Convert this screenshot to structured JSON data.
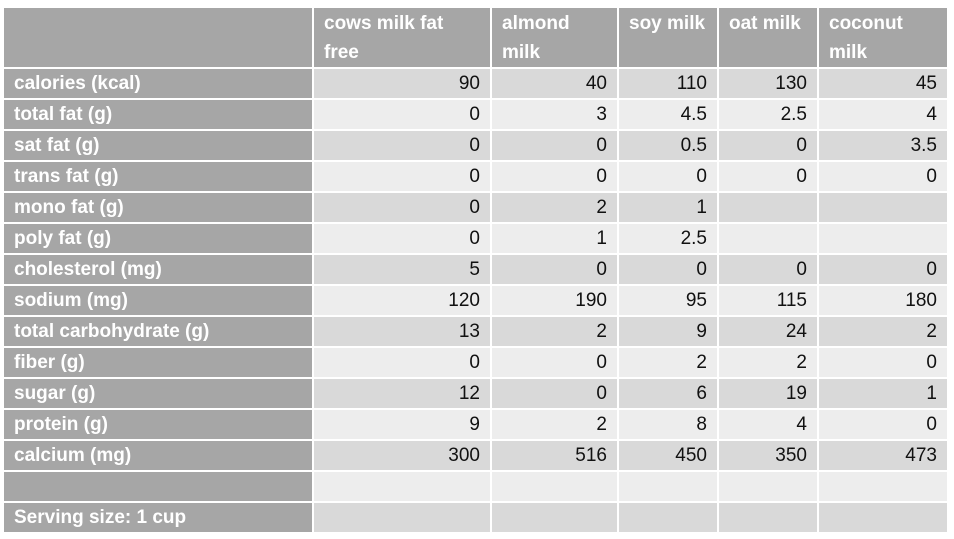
{
  "table": {
    "corner": "",
    "columns": [
      "cows milk fat free",
      "almond milk",
      "soy milk",
      "oat milk",
      "coconut milk"
    ],
    "rows": [
      {
        "label": "calories (kcal)",
        "values": [
          "90",
          "40",
          "110",
          "130",
          "45"
        ]
      },
      {
        "label": "total fat (g)",
        "values": [
          "0",
          "3",
          "4.5",
          "2.5",
          "4"
        ]
      },
      {
        "label": "sat fat (g)",
        "values": [
          "0",
          "0",
          "0.5",
          "0",
          "3.5"
        ]
      },
      {
        "label": "trans fat (g)",
        "values": [
          "0",
          "0",
          "0",
          "0",
          "0"
        ]
      },
      {
        "label": "mono fat (g)",
        "values": [
          "0",
          "2",
          "1",
          "",
          ""
        ]
      },
      {
        "label": "poly fat (g)",
        "values": [
          "0",
          "1",
          "2.5",
          "",
          ""
        ]
      },
      {
        "label": "cholesterol (mg)",
        "values": [
          "5",
          "0",
          "0",
          "0",
          "0"
        ]
      },
      {
        "label": "sodium (mg)",
        "values": [
          "120",
          "190",
          "95",
          "115",
          "180"
        ]
      },
      {
        "label": "total carbohydrate (g)",
        "values": [
          "13",
          "2",
          "9",
          "24",
          "2"
        ]
      },
      {
        "label": "fiber (g)",
        "values": [
          "0",
          "0",
          "2",
          "2",
          "0"
        ]
      },
      {
        "label": "sugar (g)",
        "values": [
          "12",
          "0",
          "6",
          "19",
          "1"
        ]
      },
      {
        "label": "protein (g)",
        "values": [
          "9",
          "2",
          "8",
          "4",
          "0"
        ]
      },
      {
        "label": "calcium (mg)",
        "values": [
          "300",
          "516",
          "450",
          "350",
          "473"
        ]
      },
      {
        "label": "",
        "values": [
          "",
          "",
          "",
          "",
          ""
        ]
      },
      {
        "label": "Serving size: 1 cup",
        "values": [
          "",
          "",
          "",
          "",
          ""
        ]
      }
    ]
  },
  "colors": {
    "header_bg": "#a6a6a6",
    "header_text": "#ffffff",
    "band_dark": "#d9d9d9",
    "band_light": "#ededed",
    "cell_text": "#111111"
  }
}
